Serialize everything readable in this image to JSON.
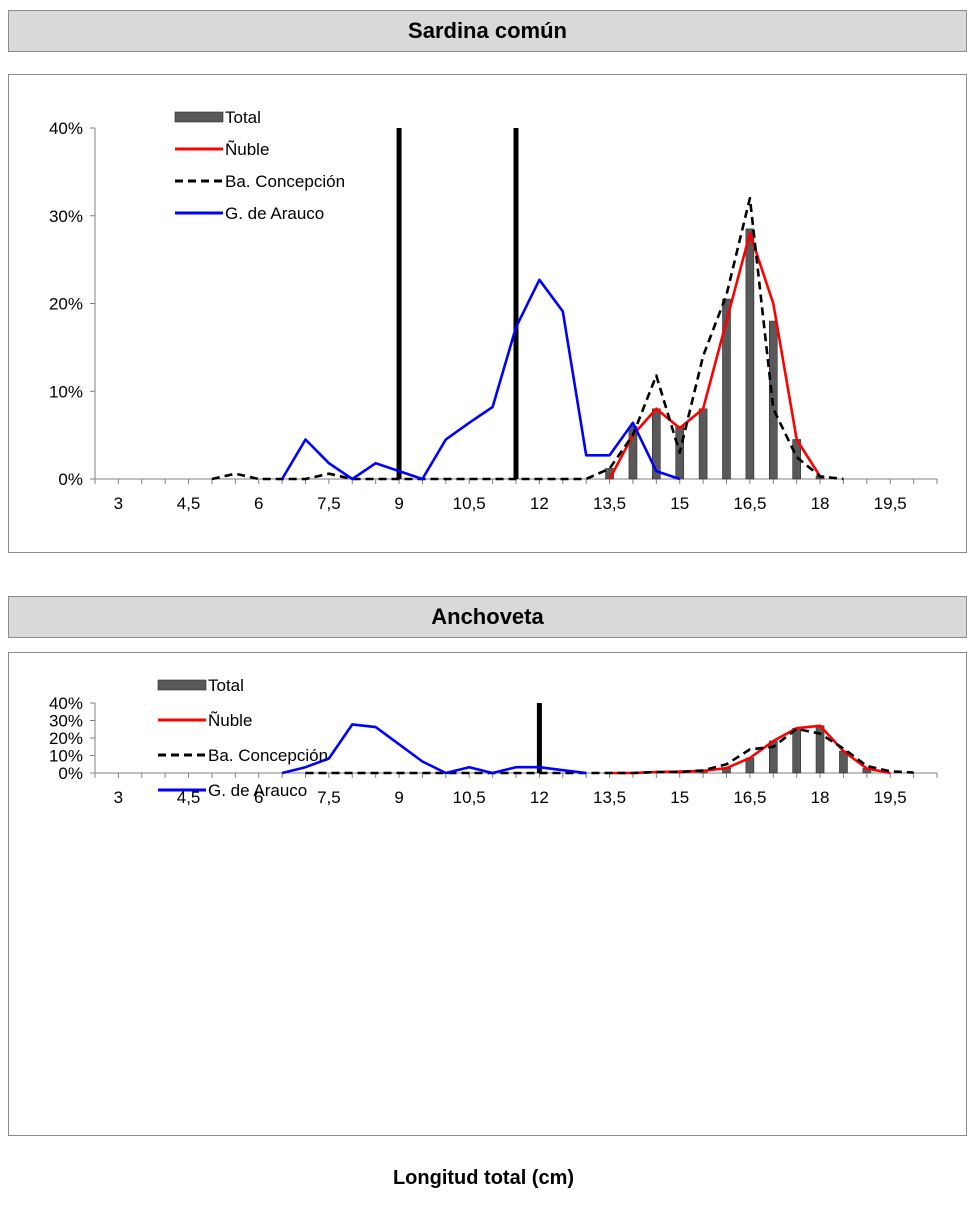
{
  "xlabel": "Longitud total (cm)",
  "chart_data": [
    {
      "type": "bar",
      "title": "Sardina común",
      "ylim": [
        0,
        0.4
      ],
      "yticks": [
        0,
        0.1,
        0.2,
        0.3,
        0.4
      ],
      "ytick_labels": [
        "0%",
        "10%",
        "20%",
        "30%",
        "40%"
      ],
      "x_range": [
        2.5,
        20.5
      ],
      "xtick_labels": [
        "3",
        "4,5",
        "6",
        "7,5",
        "9",
        "10,5",
        "12",
        "13,5",
        "15",
        "16,5",
        "18",
        "19,5"
      ],
      "xtick_values": [
        3,
        4.5,
        6,
        7.5,
        9,
        10.5,
        12,
        13.5,
        15,
        16.5,
        18,
        19.5
      ],
      "vlines": [
        9,
        11.5
      ],
      "legend": [
        "Total",
        "Ñuble",
        "Ba. Concepción",
        "G. de Arauco"
      ],
      "series": [
        {
          "name": "Total",
          "kind": "bar",
          "color": "#595959",
          "x": [
            13.5,
            14,
            14.5,
            15,
            15.5,
            16,
            16.5,
            17,
            17.5,
            18
          ],
          "values": [
            0.012,
            0.06,
            0.08,
            0.06,
            0.08,
            0.205,
            0.285,
            0.18,
            0.045,
            0.003
          ]
        },
        {
          "name": "Ñuble",
          "kind": "line",
          "color": "#ff0000",
          "dash": false,
          "x": [
            13.5,
            14,
            14.5,
            15,
            15.5,
            16,
            16.5,
            17,
            17.5,
            18
          ],
          "values": [
            0.0,
            0.05,
            0.08,
            0.058,
            0.08,
            0.18,
            0.28,
            0.2,
            0.045,
            0.003
          ]
        },
        {
          "name": "Ba. Concepción",
          "kind": "line",
          "color": "#000000",
          "dash": true,
          "x": [
            5,
            5.5,
            6,
            6.5,
            7,
            7.5,
            8,
            8.5,
            9,
            9.5,
            10,
            10.5,
            11,
            11.5,
            12,
            12.5,
            13,
            13.5,
            14,
            14.5,
            15,
            15.5,
            16,
            16.5,
            17,
            17.5,
            18,
            18.5
          ],
          "values": [
            0,
            0.006,
            0,
            0,
            0,
            0.006,
            0,
            0,
            0,
            0,
            0,
            0,
            0,
            0,
            0,
            0,
            0,
            0.012,
            0.05,
            0.118,
            0.03,
            0.14,
            0.21,
            0.32,
            0.08,
            0.025,
            0.003,
            0
          ]
        },
        {
          "name": "G. de Arauco",
          "kind": "line",
          "color": "#0000ff",
          "dash": false,
          "x": [
            6.5,
            7,
            7.5,
            8,
            8.5,
            9,
            9.5,
            10,
            10.5,
            11,
            11.5,
            12,
            12.5,
            13,
            13.5,
            14,
            14.5,
            15
          ],
          "values": [
            0,
            0.045,
            0.018,
            0,
            0.018,
            0.009,
            0,
            0.045,
            0.064,
            0.082,
            0.173,
            0.227,
            0.191,
            0.027,
            0.027,
            0.064,
            0.009,
            0
          ]
        }
      ]
    },
    {
      "type": "bar",
      "title": "Anchoveta",
      "ylim": [
        0,
        0.4
      ],
      "yticks": [
        0,
        0.1,
        0.2,
        0.3,
        0.4
      ],
      "ytick_labels": [
        "0%",
        "10%",
        "20%",
        "30%",
        "40%"
      ],
      "x_range": [
        2.5,
        20.5
      ],
      "xtick_labels": [
        "3",
        "4,5",
        "6",
        "7,5",
        "9",
        "10,5",
        "12",
        "13,5",
        "15",
        "16,5",
        "18",
        "19,5"
      ],
      "xtick_values": [
        3,
        4.5,
        6,
        7.5,
        9,
        10.5,
        12,
        13.5,
        15,
        16.5,
        18,
        19.5
      ],
      "vlines": [
        12
      ],
      "legend": [
        "Total",
        "Ñuble",
        "Ba. Concepción",
        "G. de Arauco"
      ],
      "series": [
        {
          "name": "Total",
          "kind": "bar",
          "color": "#595959",
          "x": [
            14.5,
            15,
            15.5,
            16,
            16.5,
            17,
            17.5,
            18,
            18.5,
            19
          ],
          "values": [
            0.006,
            0.008,
            0.012,
            0.028,
            0.086,
            0.183,
            0.256,
            0.27,
            0.125,
            0.026
          ]
        },
        {
          "name": "Ñuble",
          "kind": "line",
          "color": "#ff0000",
          "dash": false,
          "x": [
            13.5,
            14,
            14.5,
            15,
            15.5,
            16,
            16.5,
            17,
            17.5,
            18,
            18.5,
            19,
            19.5
          ],
          "values": [
            0,
            0,
            0.006,
            0.008,
            0.012,
            0.028,
            0.086,
            0.183,
            0.256,
            0.27,
            0.125,
            0.026,
            0
          ]
        },
        {
          "name": "Ba. Concepción",
          "kind": "line",
          "color": "#000000",
          "dash": true,
          "x": [
            7,
            7.5,
            8,
            8.5,
            9,
            9.5,
            10,
            10.5,
            11,
            11.5,
            12,
            12.5,
            13,
            13.5,
            14,
            14.5,
            15,
            15.5,
            16,
            16.5,
            17,
            17.5,
            18,
            18.5,
            19,
            19.5,
            20
          ],
          "values": [
            0,
            0,
            0,
            0,
            0,
            0,
            0,
            0,
            0,
            0,
            0,
            0,
            0,
            0,
            0,
            0.006,
            0.006,
            0.015,
            0.05,
            0.135,
            0.15,
            0.252,
            0.225,
            0.14,
            0.04,
            0.01,
            0.002
          ]
        },
        {
          "name": "G. de Arauco",
          "kind": "line",
          "color": "#0000ff",
          "dash": false,
          "x": [
            6.5,
            7,
            7.5,
            8,
            8.5,
            9,
            9.5,
            10,
            10.5,
            11,
            11.5,
            12,
            12.5,
            13
          ],
          "values": [
            0,
            0.033,
            0.083,
            0.278,
            0.262,
            0.164,
            0.066,
            0,
            0.033,
            0,
            0.033,
            0.033,
            0.016,
            0
          ]
        }
      ]
    }
  ]
}
